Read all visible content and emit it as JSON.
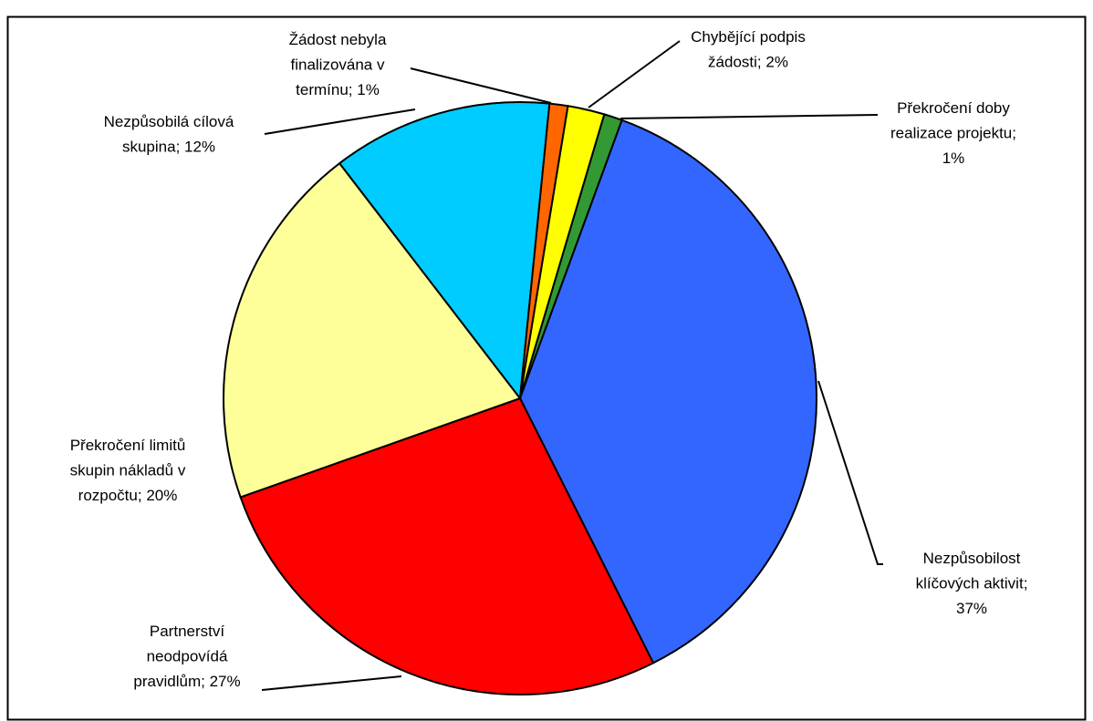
{
  "chart_data": {
    "type": "pie",
    "categories": [
      "Překročení doby realizace projektu",
      "Nezpůsobilost klíčových aktivit",
      "Partnerství neodpovídá pravidlům",
      "Překročení limitů skupin nákladů v rozpočtu",
      "Nezpůsobilá cílová skupina",
      "Žádost nebyla finalizována v termínu",
      "Chybějící podpis žádosti"
    ],
    "values": [
      1,
      37,
      27,
      20,
      12,
      1,
      2
    ],
    "value_labels": [
      "1%",
      "37%",
      "27%",
      "20%",
      "12%",
      "1%",
      "2%"
    ],
    "label_separator": "; ",
    "colors": [
      "#339933",
      "#3366ff",
      "#ff0000",
      "#ffff99",
      "#00ccff",
      "#ff6600",
      "#ffff00"
    ]
  }
}
